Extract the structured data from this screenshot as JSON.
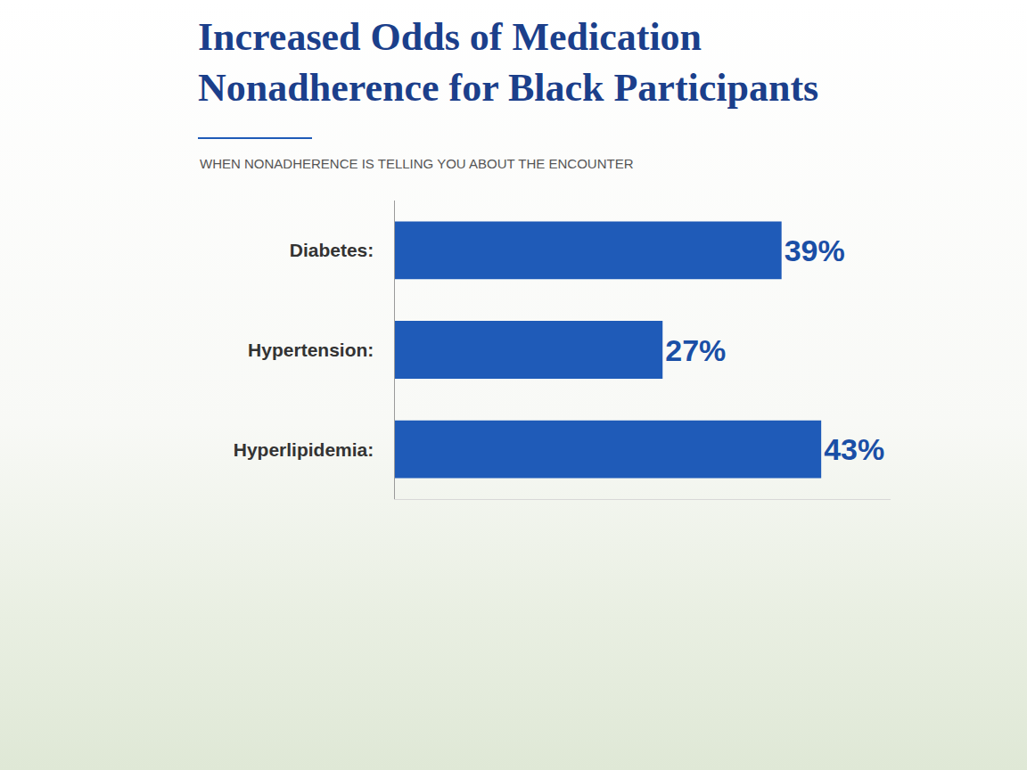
{
  "chart_data": {
    "type": "bar",
    "title": "Increased Odds of Medication Nonadherence for Black Participants",
    "subtitle": "WHEN NONADHERENCE IS TELLING YOU ABOUT THE ENCOUNTER",
    "categories": [
      "Diabetes:",
      "Hypertension:",
      "Hyperlipidemia:"
    ],
    "values": [
      39,
      27,
      43
    ],
    "value_labels": [
      "39%",
      "27%",
      "43%"
    ],
    "color": "#1f5bb8",
    "orientation": "horizontal",
    "data_labels": true,
    "tick_labels": "y",
    "xlim": [
      0,
      50
    ],
    "xticks": [],
    "grid": false
  }
}
